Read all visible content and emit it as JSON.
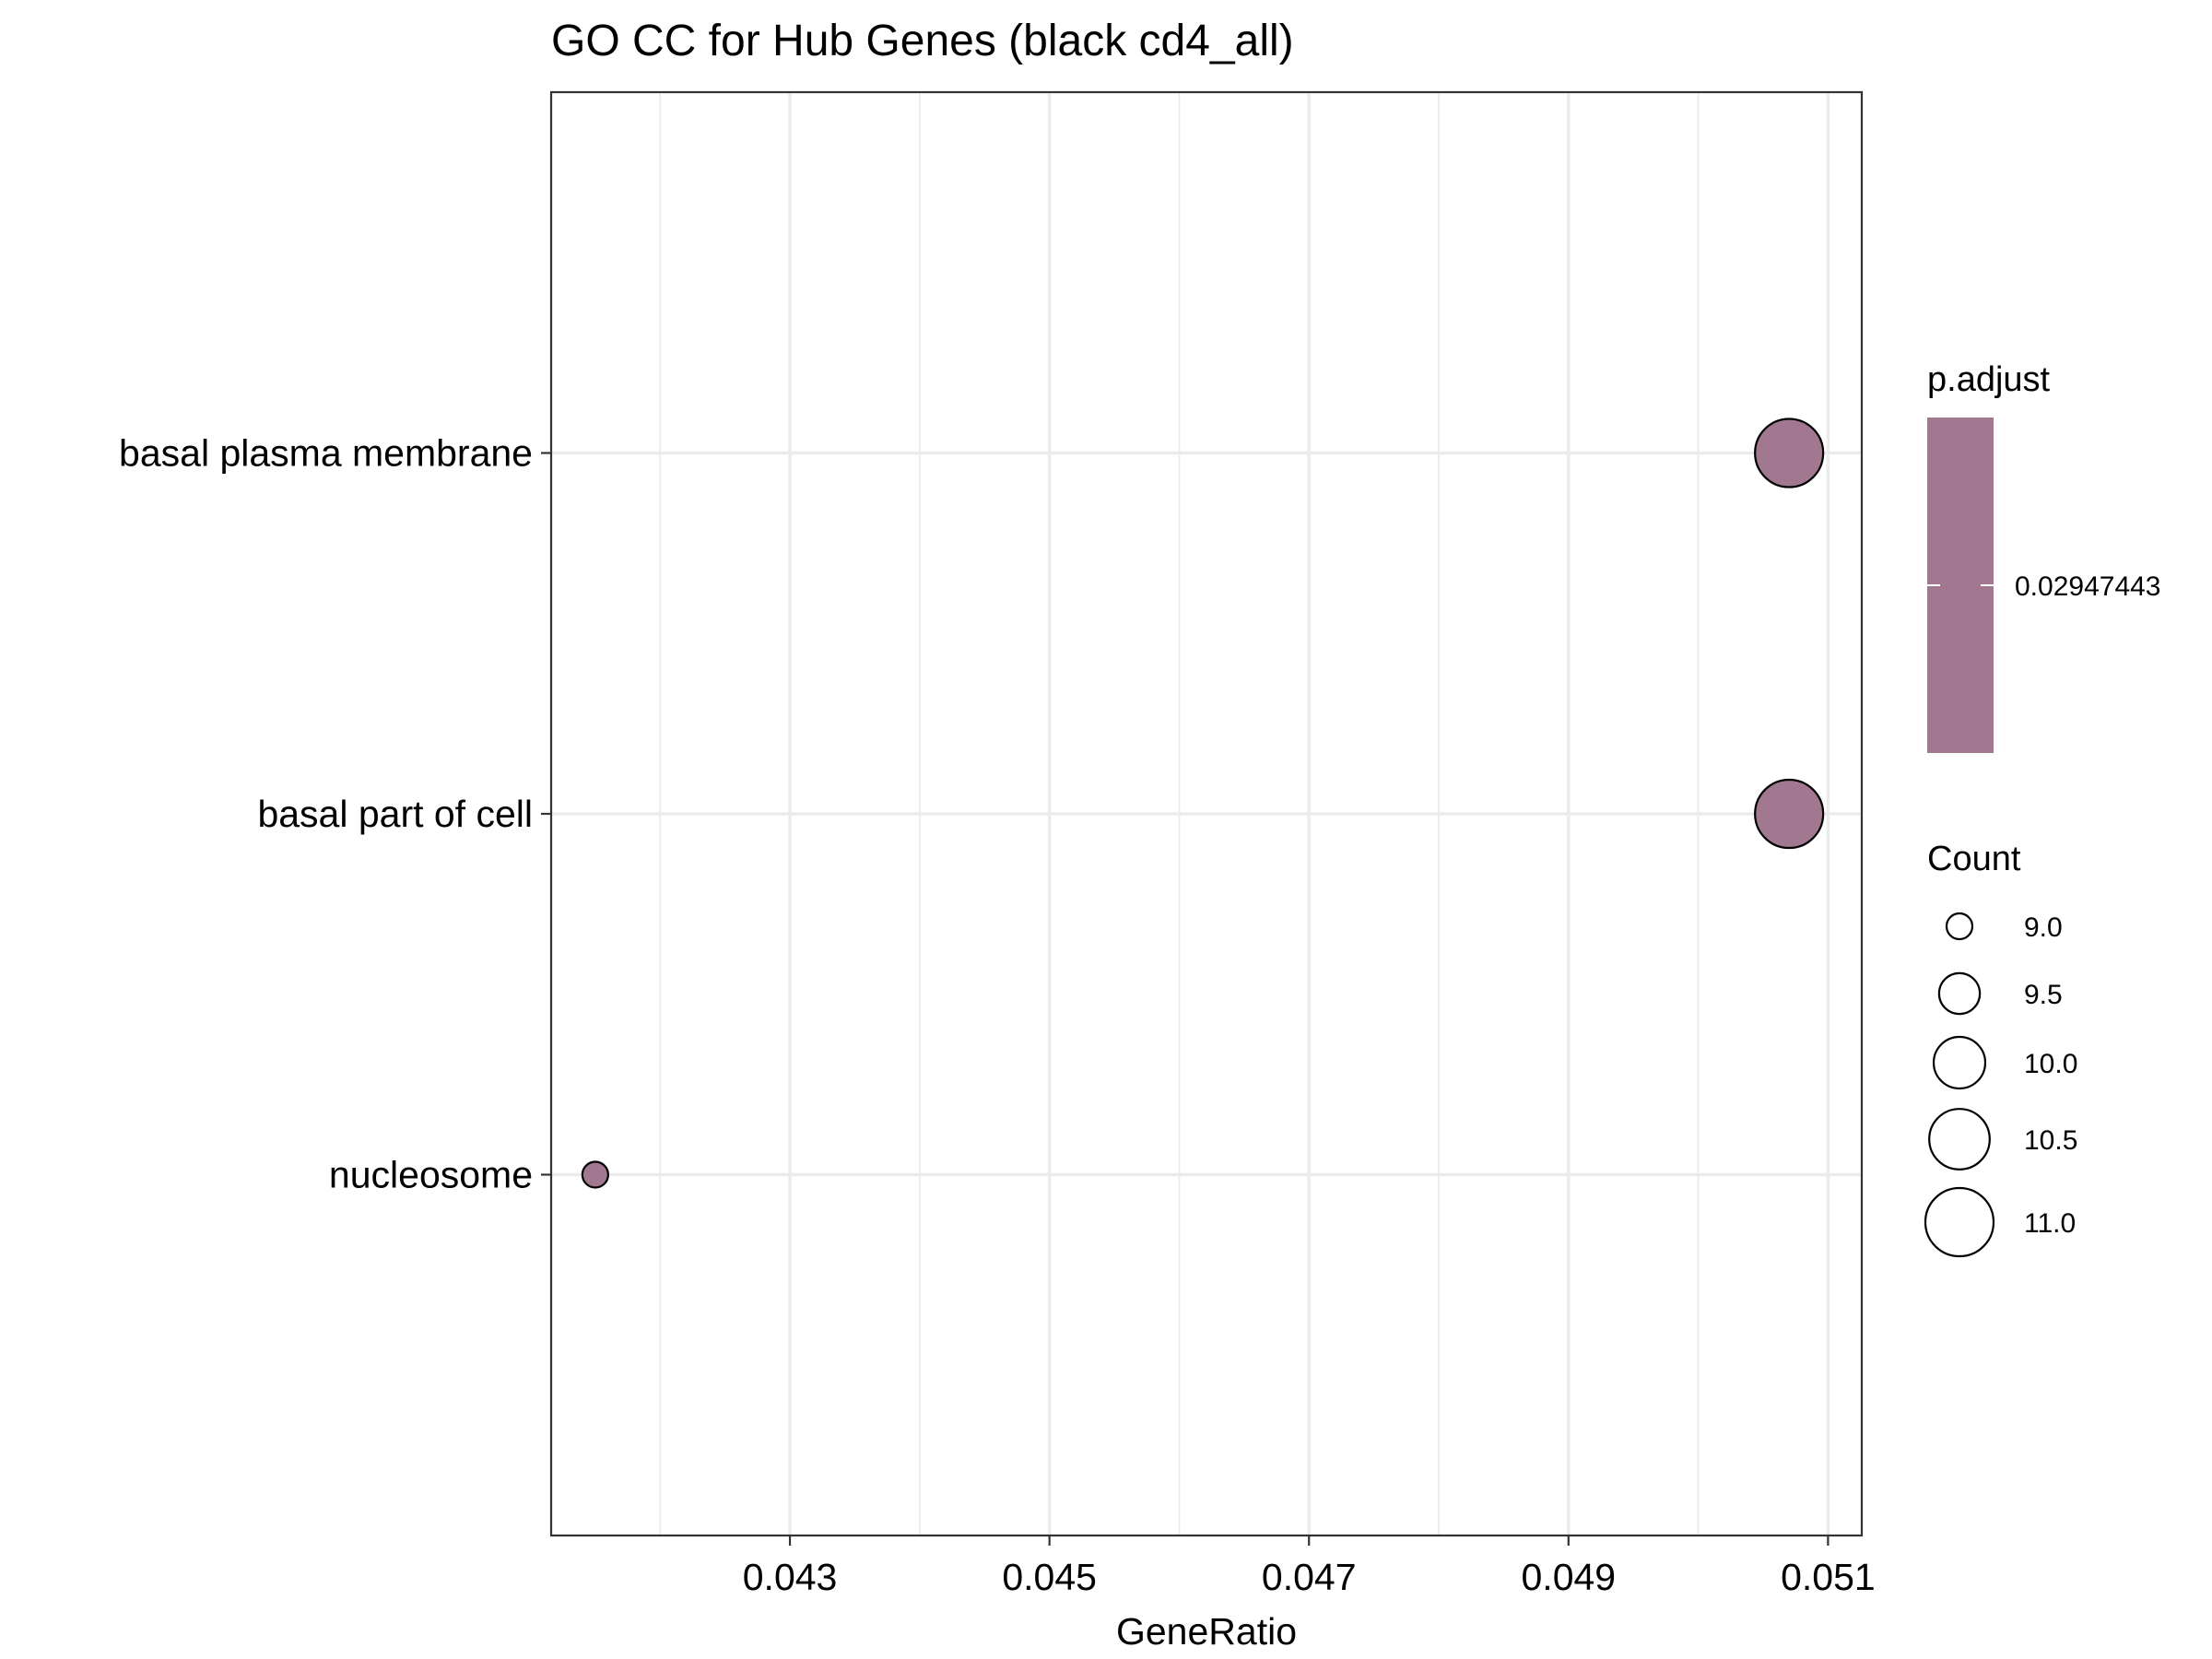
{
  "chart_data": {
    "type": "scatter",
    "title": "GO CC for Hub Genes (black cd4_all)",
    "xlabel": "GeneRatio",
    "ylabel": "",
    "xlim": [
      0.04116,
      0.05126
    ],
    "x_ticks": [
      0.043,
      0.045,
      0.047,
      0.049,
      0.051
    ],
    "x_tick_labels": [
      "0.043",
      "0.045",
      "0.047",
      "0.049",
      "0.051"
    ],
    "categories": [
      "basal plasma membrane",
      "basal part of cell",
      "nucleosome"
    ],
    "points": [
      {
        "category": "basal plasma membrane",
        "gene_ratio": 0.0507,
        "count": 11,
        "p_adjust": 0.02947443
      },
      {
        "category": "basal part of cell",
        "gene_ratio": 0.0507,
        "count": 11,
        "p_adjust": 0.02947443
      },
      {
        "category": "nucleosome",
        "gene_ratio": 0.0415,
        "count": 9,
        "p_adjust": 0.02947443
      }
    ],
    "grid": true,
    "legend_position": "right",
    "color_legend": {
      "title": "p.adjust",
      "label": "0.02947443",
      "color": "#a27790"
    },
    "size_legend": {
      "title": "Count",
      "values": [
        9.0,
        9.5,
        10.0,
        10.5,
        11.0
      ],
      "labels": [
        "9.0",
        "9.5",
        "10.0",
        "10.5",
        "11.0"
      ]
    },
    "point_color": "#a27790",
    "point_stroke": "#000000"
  }
}
